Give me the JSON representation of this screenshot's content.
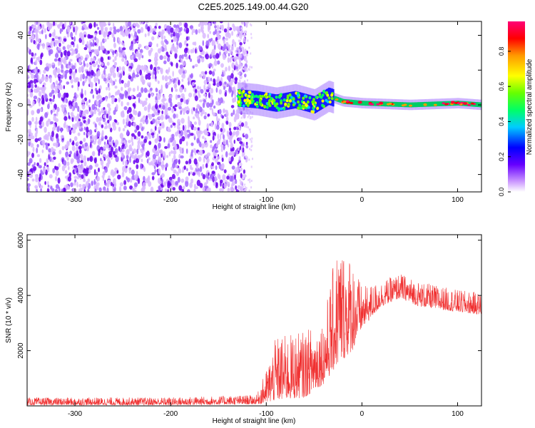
{
  "title": "C2E5.2025.149.00.44.G20",
  "chart_data": [
    {
      "type": "heatmap",
      "xlabel": "Height of straight line (km)",
      "ylabel": "Frequency (Hz)",
      "xlim": [
        -350,
        125
      ],
      "ylim": [
        -50,
        48
      ],
      "xticks": [
        -300,
        -200,
        -100,
        0,
        100
      ],
      "yticks": [
        -40,
        -20,
        0,
        20,
        40
      ],
      "grid": false,
      "colorbar": {
        "label": "Normalized spectral amplitude",
        "range": [
          0,
          0.97
        ],
        "ticks": [
          0.0,
          0.2,
          0.4,
          0.6,
          0.8
        ]
      },
      "regions": [
        {
          "x_range": [
            -350,
            -120
          ],
          "y_range": [
            -50,
            48
          ],
          "amplitude_range": [
            0.05,
            0.2
          ]
        },
        {
          "x_range": [
            -130,
            -30
          ],
          "y_range": [
            -8,
            10
          ],
          "amplitude_range": [
            0.2,
            0.6
          ]
        },
        {
          "x_range": [
            -30,
            125
          ],
          "y_range": [
            -2,
            3
          ],
          "amplitude_range": [
            0.4,
            0.95
          ]
        }
      ],
      "signal_trace": [
        {
          "x": -130,
          "y": 4
        },
        {
          "x": -110,
          "y": 3
        },
        {
          "x": -90,
          "y": 1
        },
        {
          "x": -70,
          "y": 3
        },
        {
          "x": -50,
          "y": 0
        },
        {
          "x": -35,
          "y": 5
        },
        {
          "x": -20,
          "y": 2
        },
        {
          "x": 0,
          "y": 1
        },
        {
          "x": 50,
          "y": 0
        },
        {
          "x": 100,
          "y": 1
        },
        {
          "x": 125,
          "y": 0
        }
      ]
    },
    {
      "type": "line",
      "xlabel": "Height of straight line (km)",
      "ylabel": "SNR (10 * v/v)",
      "xlim": [
        -350,
        125
      ],
      "ylim": [
        0,
        6200
      ],
      "xticks": [
        -300,
        -200,
        -100,
        0,
        100
      ],
      "yticks": [
        2000,
        4000,
        6000
      ],
      "grid": false,
      "series": [
        {
          "color": "#f03030",
          "envelope": [
            {
              "x": -350,
              "lo": 30,
              "hi": 300
            },
            {
              "x": -200,
              "lo": 30,
              "hi": 310
            },
            {
              "x": -110,
              "lo": 60,
              "hi": 400
            },
            {
              "x": -100,
              "lo": 100,
              "hi": 1300
            },
            {
              "x": -90,
              "lo": 200,
              "hi": 2500
            },
            {
              "x": -60,
              "lo": 300,
              "hi": 2700
            },
            {
              "x": -40,
              "lo": 800,
              "hi": 3200
            },
            {
              "x": -25,
              "lo": 1500,
              "hi": 6000
            },
            {
              "x": -10,
              "lo": 2000,
              "hi": 5400
            },
            {
              "x": 0,
              "lo": 2800,
              "hi": 4300
            },
            {
              "x": 20,
              "lo": 3600,
              "hi": 4500
            },
            {
              "x": 40,
              "lo": 3900,
              "hi": 4800
            },
            {
              "x": 60,
              "lo": 3600,
              "hi": 4500
            },
            {
              "x": 100,
              "lo": 3400,
              "hi": 4200
            },
            {
              "x": 125,
              "lo": 3300,
              "hi": 4100
            }
          ]
        }
      ]
    }
  ]
}
